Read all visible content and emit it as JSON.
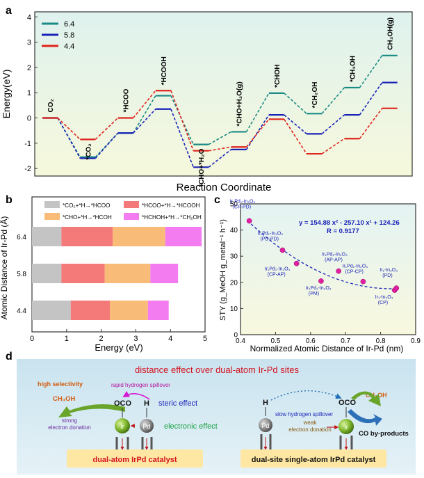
{
  "panel_labels": {
    "a": "a",
    "b": "b",
    "c": "c",
    "d": "d"
  },
  "chart_data": [
    {
      "panel": "a",
      "type": "line",
      "xlabel": "Reaction Coordinate",
      "ylabel": "Energy(eV)",
      "ylim": [
        -2.3,
        4.2
      ],
      "yticks": [
        -2,
        -1,
        0,
        1,
        2,
        3,
        4
      ],
      "states": [
        "CO₂",
        "*CO₂",
        "*HCOO",
        "*HCOOH",
        "*CHO+*H₂O",
        "*CHO+H₂O(g)",
        "*CHOH",
        "*CH₂OH",
        "*CH₃OH",
        "CH₃OH(g)"
      ],
      "series": [
        {
          "name": "6.4",
          "color": "#1a8a85",
          "values": [
            0,
            -1.55,
            -0.6,
            0.88,
            -1.05,
            -0.55,
            0.98,
            0.17,
            1.2,
            2.47
          ]
        },
        {
          "name": "5.8",
          "color": "#1a23b8",
          "values": [
            0,
            -1.6,
            -0.6,
            0.35,
            -1.95,
            -1.25,
            0.12,
            -0.63,
            0.12,
            1.4
          ]
        },
        {
          "name": "4.4",
          "color": "#e0231c",
          "values": [
            0,
            -0.85,
            0,
            1.08,
            -1.3,
            -1.15,
            -0.05,
            -1.42,
            -0.82,
            0.38
          ]
        }
      ]
    },
    {
      "panel": "b",
      "type": "bar",
      "orientation": "horizontal-stacked",
      "xlabel": "Energy (eV)",
      "ylabel": "Atomic Distance of Ir-Pd (Å)",
      "xlim": [
        0,
        5
      ],
      "xticks": [
        0,
        1,
        2,
        3,
        4,
        5
      ],
      "categories": [
        "6.4",
        "5.8",
        "4.4"
      ],
      "series": [
        {
          "name": "*CO₂+*H→*HCOO",
          "color": "#c4c4c4",
          "values": [
            0.85,
            0.85,
            1.12
          ]
        },
        {
          "name": "*HCOO+*H→*HCOOH",
          "color": "#f47a7a",
          "values": [
            1.48,
            1.25,
            1.13
          ]
        },
        {
          "name": "*CHO+*H→*HCOH",
          "color": "#f9bb78",
          "values": [
            1.52,
            1.32,
            1.1
          ]
        },
        {
          "name": "*HCHOH+*H→*CH₂OH",
          "color": "#f27cf0",
          "values": [
            1.05,
            0.8,
            0.6
          ]
        }
      ]
    },
    {
      "panel": "c",
      "type": "scatter",
      "xlabel": "Normalized Atomic Distance of Ir-Pd (nm)",
      "ylabel": "STY (g_MeOH g_metal⁻¹ h⁻¹)",
      "xlim": [
        0.4,
        0.9
      ],
      "ylim": [
        0,
        50
      ],
      "xticks": [
        0.4,
        0.5,
        0.6,
        0.7,
        0.8,
        0.9
      ],
      "yticks": [
        0,
        10,
        20,
        30,
        40,
        50
      ],
      "equation": "y = 154.88 x² - 257.10 x¹ + 124.26",
      "r_value": "R = 0.9177",
      "points": [
        {
          "x": 0.425,
          "y": 43.5,
          "label": "Ir₁Pd₁-In₂O₃",
          "sublabel": "(CP-PD)"
        },
        {
          "x": 0.52,
          "y": 32.3,
          "label": "Ir₁Pd₁-In₂O₃",
          "sublabel": "(PD-PD)"
        },
        {
          "x": 0.56,
          "y": 27.2,
          "label": "Ir₁Pd₁-In₂O₃",
          "sublabel": "(CP-AP)"
        },
        {
          "x": 0.63,
          "y": 20.5,
          "label": "Ir₁Pd₁-In₂O₃",
          "sublabel": "(PM)"
        },
        {
          "x": 0.68,
          "y": 24.3,
          "label": "Ir₁Pd₁-In₂O₃",
          "sublabel": "(AP-AP)"
        },
        {
          "x": 0.75,
          "y": 20.3,
          "label": "Ir₁Pd₁-In₂O₃",
          "sublabel": "(CP-CP)"
        },
        {
          "x": 0.84,
          "y": 17.0,
          "label": "Ir₁-In₂O₃",
          "sublabel": "(CP)"
        },
        {
          "x": 0.845,
          "y": 17.8,
          "label": "Ir₁-In₂O₃",
          "sublabel": "(PD)"
        }
      ]
    }
  ],
  "panel_d": {
    "title": "distance effect over dual-atom Ir-Pd sites",
    "left": {
      "high_selectivity": "high selectivity",
      "product": "CH₃OH",
      "spillover": "rapid hydrogen spillover",
      "oco": "OCO",
      "h": "H",
      "steric": "steric effect",
      "electronic": "electronic effect",
      "donation_1": "strong",
      "donation_2": "electron donation",
      "ir": "Ir",
      "pd": "Pd",
      "caption": "dual-atom IrPd catalyst"
    },
    "right": {
      "h": "H",
      "oco": "OCO",
      "product": "CH₃OH",
      "spillover": "slow hydrogen spillover",
      "donation_1": "weak",
      "donation_2": "electron donation",
      "byproducts": "CO by-products",
      "ir": "Ir",
      "pd": "Pd",
      "caption": "dual-site single-atom IrPd catalyst"
    }
  }
}
